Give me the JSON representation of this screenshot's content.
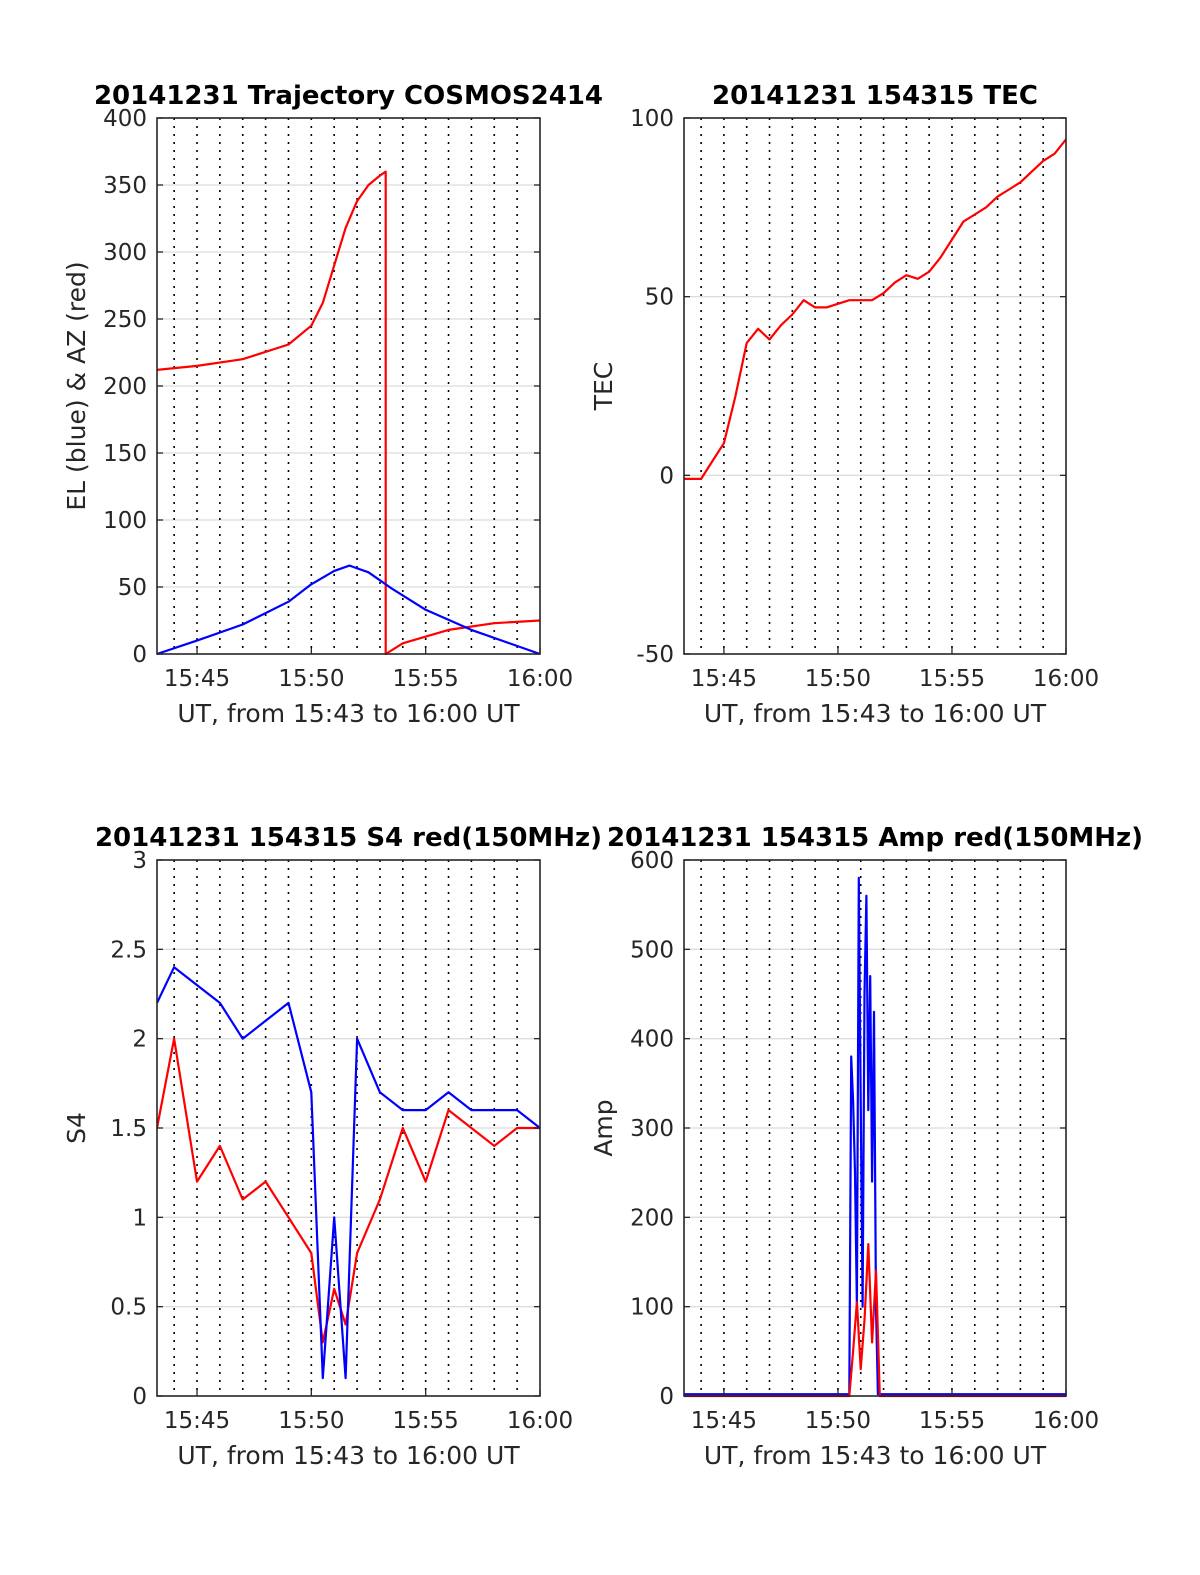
{
  "figure": {
    "background": "#ffffff",
    "colors": {
      "el": "#0000ff",
      "az": "#ff0000",
      "frame": "#262626",
      "ygrid": "#dcdcdc",
      "xgrid": "#000000"
    }
  },
  "chart_data": [
    {
      "id": "trajectory",
      "type": "line",
      "title": "20141231 Trajectory COSMOS2414",
      "xlabel": "UT, from 15:43 to 16:00 UT",
      "ylabel": "EL (blue) & AZ (red)",
      "xlim": [
        "15:43:15",
        "16:00:00"
      ],
      "ylim": [
        0,
        400
      ],
      "yticks": [
        0,
        50,
        100,
        150,
        200,
        250,
        300,
        350,
        400
      ],
      "xticks": [
        "15:45",
        "15:50",
        "15:55",
        "16:00"
      ],
      "vgrid_minutes": [
        "15:44",
        "15:45",
        "15:46",
        "15:47",
        "15:48",
        "15:49",
        "15:50",
        "15:51",
        "15:52",
        "15:53",
        "15:54",
        "15:55",
        "15:56",
        "15:57",
        "15:58",
        "15:59"
      ],
      "grid": true,
      "series": [
        {
          "color": "#ff0000",
          "x": [
            "15:43:15",
            "15:45:00",
            "15:47:00",
            "15:49:00",
            "15:50:00",
            "15:50:30",
            "15:51:00",
            "15:51:30",
            "15:52:00",
            "15:52:30",
            "15:53:00",
            "15:53:15",
            "15:53:15",
            "15:54:00",
            "15:56:00",
            "15:58:00",
            "16:00:00"
          ],
          "y": [
            212,
            215,
            220,
            231,
            245,
            262,
            290,
            318,
            338,
            350,
            357,
            360,
            0,
            8,
            18,
            23,
            25
          ]
        },
        {
          "color": "#0000ff",
          "x": [
            "15:43:15",
            "15:45:00",
            "15:47:00",
            "15:49:00",
            "15:50:00",
            "15:51:00",
            "15:51:40",
            "15:52:30",
            "15:53:30",
            "15:55:00",
            "15:57:00",
            "16:00:00"
          ],
          "y": [
            0,
            10,
            22,
            39,
            52,
            62,
            66,
            61,
            49,
            33,
            18,
            0
          ]
        }
      ]
    },
    {
      "id": "tec",
      "type": "line",
      "title": "20141231 154315 TEC",
      "xlabel": "UT, from 15:43 to 16:00 UT",
      "ylabel": "TEC",
      "xlim": [
        "15:43:15",
        "16:00:00"
      ],
      "ylim": [
        -50,
        100
      ],
      "yticks": [
        -50,
        0,
        50,
        100
      ],
      "xticks": [
        "15:45",
        "15:50",
        "15:55",
        "16:00"
      ],
      "vgrid_minutes": [
        "15:44",
        "15:45",
        "15:46",
        "15:47",
        "15:48",
        "15:49",
        "15:50",
        "15:51",
        "15:52",
        "15:53",
        "15:54",
        "15:55",
        "15:56",
        "15:57",
        "15:58",
        "15:59"
      ],
      "grid": true,
      "series": [
        {
          "color": "#ff0000",
          "x": [
            "15:43:15",
            "15:44:00",
            "15:44:30",
            "15:45:00",
            "15:45:30",
            "15:46:00",
            "15:46:30",
            "15:47:00",
            "15:47:30",
            "15:48:00",
            "15:48:30",
            "15:49:00",
            "15:49:30",
            "15:50:00",
            "15:50:30",
            "15:51:00",
            "15:51:30",
            "15:52:00",
            "15:52:30",
            "15:53:00",
            "15:53:30",
            "15:54:00",
            "15:54:30",
            "15:55:00",
            "15:55:30",
            "15:56:00",
            "15:56:30",
            "15:57:00",
            "15:57:30",
            "15:58:00",
            "15:58:30",
            "15:59:00",
            "15:59:30",
            "16:00:00"
          ],
          "y": [
            -1,
            -1,
            4,
            9,
            22,
            37,
            41,
            38,
            42,
            45,
            49,
            47,
            47,
            48,
            49,
            49,
            49,
            51,
            54,
            56,
            55,
            57,
            61,
            66,
            71,
            73,
            75,
            78,
            80,
            82,
            85,
            88,
            90,
            94
          ]
        }
      ]
    },
    {
      "id": "s4",
      "type": "line",
      "title": "20141231 154315 S4 red(150MHz)",
      "xlabel": "UT, from 15:43 to 16:00 UT",
      "ylabel": "S4",
      "xlim": [
        "15:43:15",
        "16:00:00"
      ],
      "ylim": [
        0,
        3
      ],
      "yticks": [
        0,
        0.5,
        1,
        1.5,
        2,
        2.5,
        3
      ],
      "xticks": [
        "15:45",
        "15:50",
        "15:55",
        "16:00"
      ],
      "vgrid_minutes": [
        "15:44",
        "15:45",
        "15:46",
        "15:47",
        "15:48",
        "15:49",
        "15:50",
        "15:51",
        "15:52",
        "15:53",
        "15:54",
        "15:55",
        "15:56",
        "15:57",
        "15:58",
        "15:59"
      ],
      "grid": true,
      "series": [
        {
          "color": "#ff0000",
          "x": [
            "15:43:15",
            "15:44:00",
            "15:45:00",
            "15:46:00",
            "15:47:00",
            "15:48:00",
            "15:49:00",
            "15:50:00",
            "15:50:30",
            "15:51:00",
            "15:51:30",
            "15:52:00",
            "15:53:00",
            "15:54:00",
            "15:55:00",
            "15:56:00",
            "15:57:00",
            "15:58:00",
            "15:59:00",
            "16:00:00"
          ],
          "y": [
            1.5,
            2.0,
            1.2,
            1.4,
            1.1,
            1.2,
            1.0,
            0.8,
            0.3,
            0.6,
            0.4,
            0.8,
            1.1,
            1.5,
            1.2,
            1.6,
            1.5,
            1.4,
            1.5,
            1.5
          ]
        },
        {
          "color": "#0000ff",
          "x": [
            "15:43:15",
            "15:44:00",
            "15:45:00",
            "15:46:00",
            "15:47:00",
            "15:48:00",
            "15:49:00",
            "15:50:00",
            "15:50:30",
            "15:51:00",
            "15:51:30",
            "15:52:00",
            "15:53:00",
            "15:54:00",
            "15:55:00",
            "15:56:00",
            "15:57:00",
            "15:58:00",
            "15:59:00",
            "16:00:00"
          ],
          "y": [
            2.2,
            2.4,
            2.3,
            2.2,
            2.0,
            2.1,
            2.2,
            1.7,
            0.1,
            1.0,
            0.1,
            2.0,
            1.7,
            1.6,
            1.6,
            1.7,
            1.6,
            1.6,
            1.6,
            1.5
          ]
        }
      ]
    },
    {
      "id": "amp",
      "type": "line",
      "title": "20141231 154315 Amp red(150MHz)",
      "xlabel": "UT, from 15:43 to 16:00 UT",
      "ylabel": "Amp",
      "xlim": [
        "15:43:15",
        "16:00:00"
      ],
      "ylim": [
        0,
        600
      ],
      "yticks": [
        0,
        100,
        200,
        300,
        400,
        500,
        600
      ],
      "xticks": [
        "15:45",
        "15:50",
        "15:55",
        "16:00"
      ],
      "vgrid_minutes": [
        "15:44",
        "15:45",
        "15:46",
        "15:47",
        "15:48",
        "15:49",
        "15:50",
        "15:51",
        "15:52",
        "15:53",
        "15:54",
        "15:55",
        "15:56",
        "15:57",
        "15:58",
        "15:59"
      ],
      "grid": true,
      "series": [
        {
          "color": "#0000ff",
          "x": [
            "15:43:15",
            "15:50:30",
            "15:50:35",
            "15:50:40",
            "15:50:45",
            "15:50:50",
            "15:50:55",
            "15:51:00",
            "15:51:05",
            "15:51:10",
            "15:51:15",
            "15:51:20",
            "15:51:25",
            "15:51:30",
            "15:51:35",
            "15:51:40",
            "15:51:45",
            "15:51:50",
            "16:00:00"
          ],
          "y": [
            2,
            2,
            380,
            330,
            250,
            100,
            580,
            330,
            100,
            450,
            560,
            320,
            470,
            240,
            430,
            100,
            2,
            2,
            2
          ]
        },
        {
          "color": "#ff0000",
          "x": [
            "15:43:15",
            "15:50:30",
            "15:50:40",
            "15:50:50",
            "15:51:00",
            "15:51:10",
            "15:51:20",
            "15:51:30",
            "15:51:40",
            "15:51:50",
            "16:00:00"
          ],
          "y": [
            0,
            0,
            50,
            105,
            30,
            85,
            170,
            60,
            140,
            0,
            0
          ]
        }
      ]
    }
  ]
}
